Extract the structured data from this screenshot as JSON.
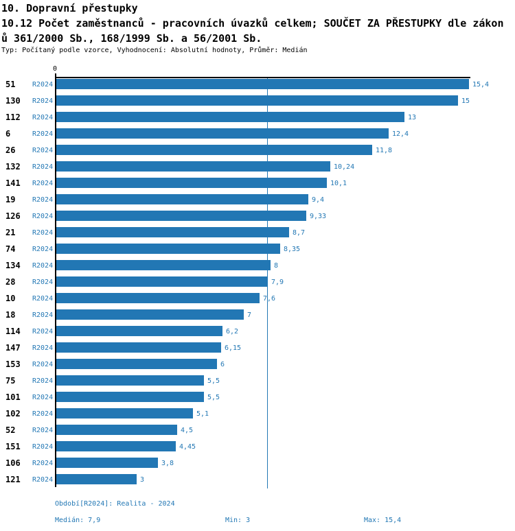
{
  "title": {
    "line1": "10. Dopravní přestupky",
    "line2": "10.12 Počet zaměstnanců - pracovních úvazků celkem; SOUČET ZA PŘESTUPKY dle zákon",
    "line3": "ů 361/2000 Sb., 168/1999 Sb. a 56/2001 Sb.",
    "meta": "Typ: Počítaný podle vzorce, Vyhodnocení: Absolutní hodnoty, Průměr: Medián"
  },
  "colors": {
    "bar": "#2277b4",
    "blue_text": "#2277b4",
    "axis": "#000000"
  },
  "chart_data": {
    "type": "bar",
    "orientation": "horizontal",
    "axis_zero_label": "0",
    "row_series_label": "R2024",
    "categories": [
      "51",
      "130",
      "112",
      "6",
      "26",
      "132",
      "141",
      "19",
      "126",
      "21",
      "74",
      "134",
      "28",
      "10",
      "18",
      "114",
      "147",
      "153",
      "75",
      "101",
      "102",
      "52",
      "151",
      "106",
      "121"
    ],
    "series": [
      {
        "name": "R2024",
        "values": [
          15.4,
          15,
          13,
          12.4,
          11.8,
          10.24,
          10.1,
          9.4,
          9.33,
          8.7,
          8.35,
          8,
          7.9,
          7.6,
          7,
          6.2,
          6.15,
          6,
          5.5,
          5.5,
          5.1,
          4.5,
          4.45,
          3.8,
          3
        ]
      }
    ],
    "value_labels": [
      "15,4",
      "15",
      "13",
      "12,4",
      "11,8",
      "10,24",
      "10,1",
      "9,4",
      "9,33",
      "8,7",
      "8,35",
      "8",
      "7,9",
      "7,6",
      "7",
      "6,2",
      "6,15",
      "6",
      "5,5",
      "5,5",
      "5,1",
      "4,5",
      "4,45",
      "3,8",
      "3"
    ],
    "xlim": [
      0,
      15.5
    ],
    "median_line": 7.9,
    "min": 3,
    "max": 15.4,
    "grid": false,
    "legend": false
  },
  "footer": {
    "period": "Období[R2024]: Realita - 2024",
    "median": "Medián: 7,9",
    "min": "Min: 3",
    "max": "Max: 15,4"
  }
}
